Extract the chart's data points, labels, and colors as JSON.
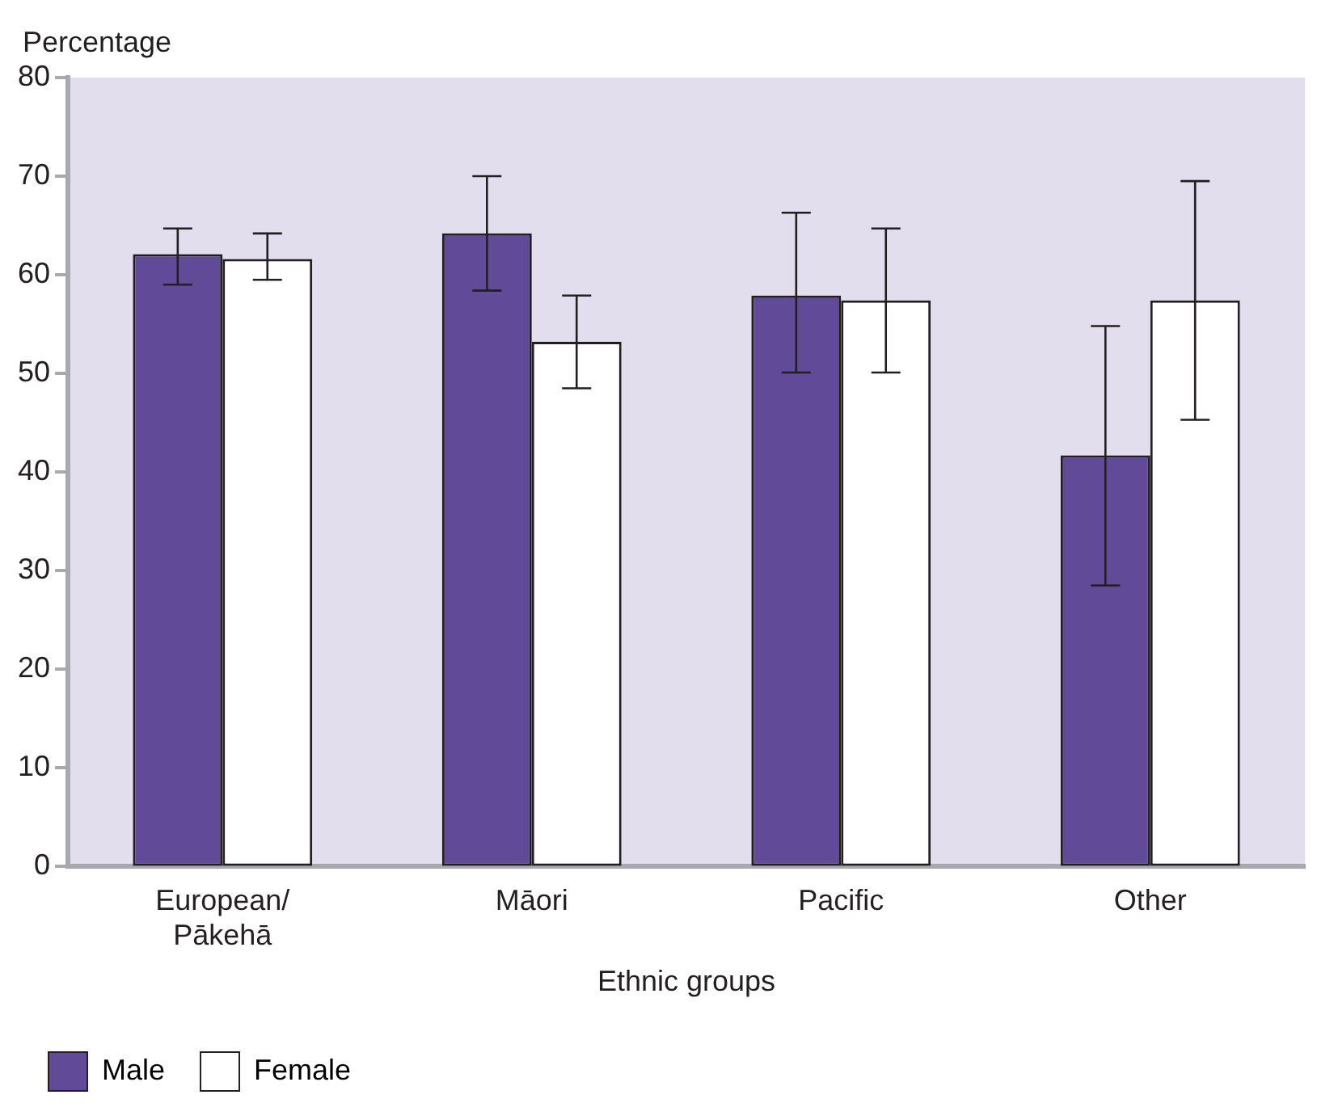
{
  "chart_data": {
    "type": "bar",
    "xlabel": "Ethnic groups",
    "ylabel": "Percentage",
    "categories": [
      "European/Pākehā",
      "Māori",
      "Pacific",
      "Other"
    ],
    "series": [
      {
        "name": "Male",
        "color": "#614a98",
        "values": [
          62.1,
          64.2,
          57.9,
          41.7
        ],
        "errors": [
          [
            59.0,
            64.7
          ],
          [
            58.4,
            70.0
          ],
          [
            50.1,
            66.3
          ],
          [
            28.5,
            54.8
          ]
        ]
      },
      {
        "name": "Female",
        "color": "#ffffff",
        "values": [
          61.6,
          53.2,
          57.4,
          57.4
        ],
        "errors": [
          [
            59.5,
            64.2
          ],
          [
            48.5,
            57.9
          ],
          [
            50.1,
            64.7
          ],
          [
            45.3,
            69.5
          ]
        ]
      }
    ],
    "ylim": [
      0,
      80
    ],
    "yticks": [
      0,
      10,
      20,
      30,
      40,
      50,
      60,
      70,
      80
    ],
    "grid": false,
    "legend": "bottom left"
  }
}
